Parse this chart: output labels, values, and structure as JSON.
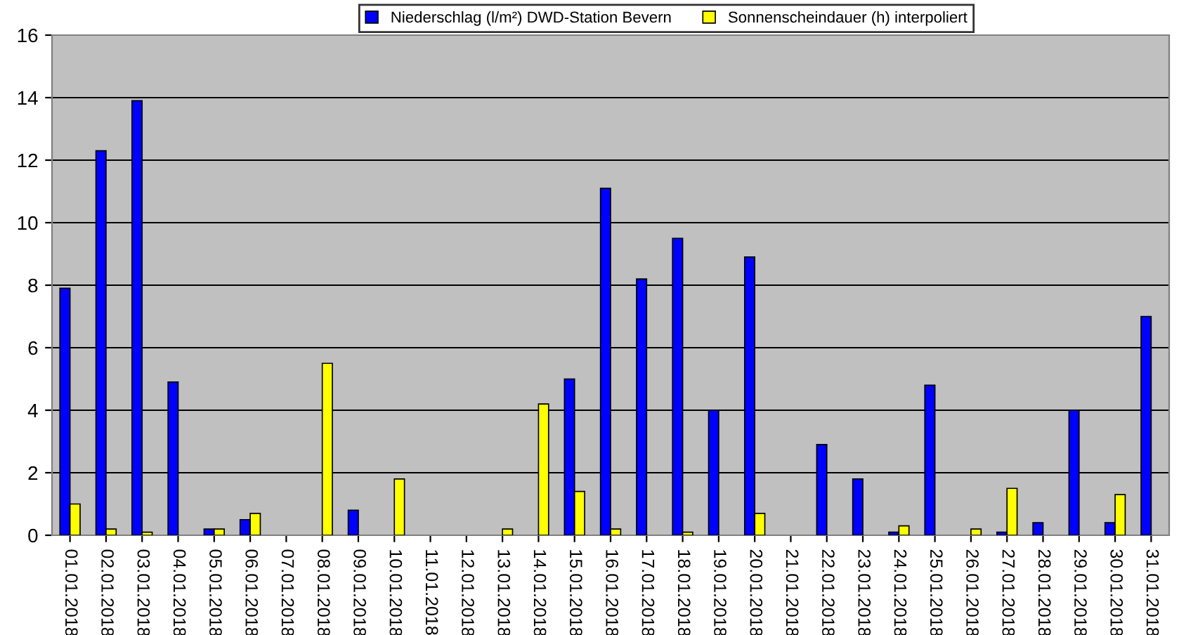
{
  "chart_data": {
    "type": "bar",
    "categories": [
      "01.01.2018",
      "02.01.2018",
      "03.01.2018",
      "04.01.2018",
      "05.01.2018",
      "06.01.2018",
      "07.01.2018",
      "08.01.2018",
      "09.01.2018",
      "10.01.2018",
      "11.01.2018",
      "12.01.2018",
      "13.01.2018",
      "14.01.2018",
      "15.01.2018",
      "16.01.2018",
      "17.01.2018",
      "18.01.2018",
      "19.01.2018",
      "20.01.2018",
      "21.01.2018",
      "22.01.2018",
      "23.01.2018",
      "24.01.2018",
      "25.01.2018",
      "26.01.2018",
      "27.01.2018",
      "28.01.2018",
      "29.01.2018",
      "30.01.2018",
      "31.01.2018"
    ],
    "series": [
      {
        "name": "Niederschlag (l/m²) DWD-Station Bevern",
        "color": "#0000ff",
        "values": [
          7.9,
          12.3,
          13.9,
          4.9,
          0.2,
          0.5,
          0,
          0,
          0.8,
          0,
          0,
          0,
          0,
          0,
          5.0,
          11.1,
          8.2,
          9.5,
          4.0,
          8.9,
          0,
          2.9,
          1.8,
          0.1,
          4.8,
          0,
          0.1,
          0.4,
          4.0,
          0.4,
          7.0
        ]
      },
      {
        "name": "Sonnenscheindauer (h) interpoliert",
        "color": "#ffff00",
        "values": [
          1.0,
          0.2,
          0.1,
          0,
          0.2,
          0.7,
          0,
          5.5,
          0,
          1.8,
          0,
          0,
          0.2,
          4.2,
          1.4,
          0.2,
          0,
          0.1,
          0,
          0.7,
          0,
          0,
          0,
          0.3,
          0,
          0.2,
          1.5,
          0,
          0,
          1.3,
          0
        ]
      }
    ],
    "ylim": [
      0,
      16
    ],
    "yticks": [
      0,
      2,
      4,
      6,
      8,
      10,
      12,
      14,
      16
    ],
    "grid": "y",
    "legend": "top"
  }
}
